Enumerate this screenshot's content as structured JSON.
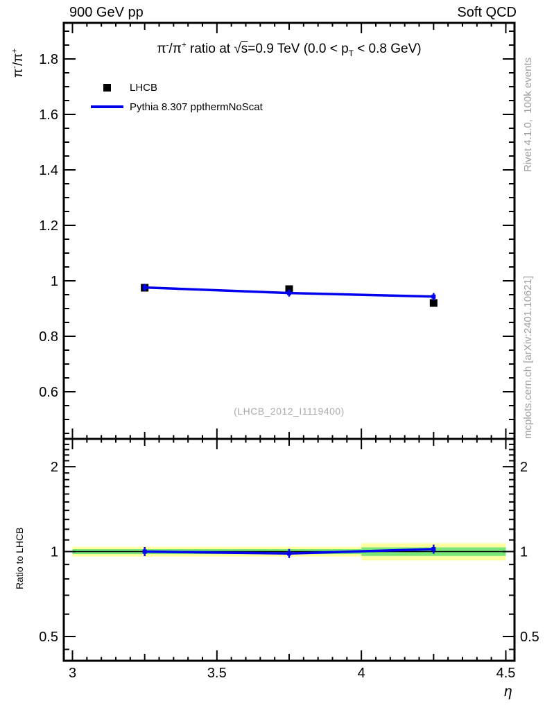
{
  "header": {
    "left": "900 GeV pp",
    "right": "Soft QCD"
  },
  "main_panel": {
    "title": "π^{-}/π^{+} ratio at √{s}=0.9 TeV (0.0 < p_{T} < 0.8 GeV)",
    "y_axis_label": "π^{-}/π^{+}",
    "watermark": "(LHCB_2012_I1119400)"
  },
  "ratio_panel": {
    "y_axis_label": "Ratio to LHCB"
  },
  "x_axis": {
    "label": "η"
  },
  "legend": [
    {
      "label": "LHCB",
      "swatch": "black-filled-square"
    },
    {
      "label": "Pythia 8.307 ppthermNoScat",
      "swatch": "blue-line"
    }
  ],
  "side_notes": {
    "top": "Rivet 4.1.0,  100k events",
    "bottom": "mcplots.cern.ch [arXiv:2401.10621]"
  },
  "colors": {
    "model": "#0000ee",
    "marker": "#000000",
    "band_outer": "#ffffa0",
    "band_inner": "#79e679",
    "credits": "#9e9e9e",
    "watermark": "#ababab",
    "axis": "#000000"
  },
  "chart_data": {
    "type": "line",
    "title": "π-/π+ ratio at √s=0.9 TeV (0.0 < pT < 0.8 GeV)",
    "xlabel": "η",
    "ylabel": "π-/π+",
    "x": [
      3.25,
      3.75,
      4.25
    ],
    "bin_edges": [
      3.0,
      3.5,
      4.0,
      4.5
    ],
    "series": [
      {
        "name": "LHCB",
        "type": "scatter",
        "marker": "filled-square",
        "color": "#000000",
        "values": [
          0.975,
          0.97,
          0.92
        ]
      },
      {
        "name": "Pythia 8.307 ppthermNoScat",
        "type": "line",
        "color": "#0000ee",
        "values": [
          0.976,
          0.956,
          0.943
        ],
        "errors": [
          0.013,
          0.013,
          0.013
        ]
      }
    ],
    "xlim": [
      2.97,
      4.53
    ],
    "xticks": [
      3,
      3.5,
      4,
      4.5
    ],
    "x_minor_step": 0.05,
    "x_medium_step": 0.25,
    "main_ylim": [
      0.43,
      1.93
    ],
    "main_yticks": [
      0.6,
      0.8,
      1.0,
      1.2,
      1.4,
      1.6,
      1.8
    ],
    "main_y_minor_step": 0.05,
    "grid": false,
    "legend_position": "top-left",
    "ratio": {
      "name": "Ratio to LHCB",
      "values": [
        1.0,
        0.985,
        1.02
      ],
      "band_outer_halfwidth": [
        0.04,
        0.04,
        0.07
      ],
      "band_inner_halfwidth": [
        0.02,
        0.02,
        0.035
      ],
      "yscale": "log",
      "ylim": [
        0.41,
        2.51
      ],
      "yticks": [
        0.5,
        1,
        2
      ],
      "y_minors": [
        0.45,
        0.6,
        0.7,
        0.8,
        0.9,
        1.1,
        1.2,
        1.3,
        1.4,
        1.5,
        1.6,
        1.7,
        1.8,
        1.9,
        2.1,
        2.2,
        2.3,
        2.4,
        2.5
      ]
    }
  }
}
